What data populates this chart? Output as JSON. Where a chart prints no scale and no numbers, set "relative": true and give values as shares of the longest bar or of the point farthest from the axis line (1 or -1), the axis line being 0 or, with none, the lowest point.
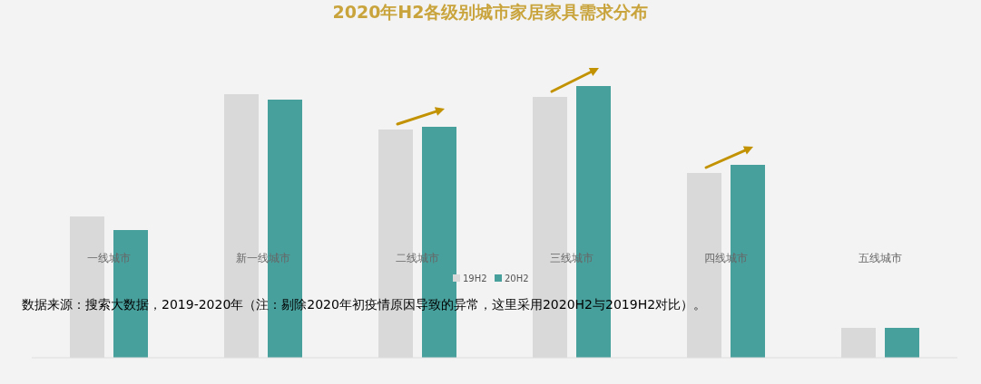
{
  "chart_data": {
    "type": "bar",
    "title": "2020年H2各级别城市家居家具需求分布",
    "categories": [
      "一线城市",
      "新一线城市",
      "二线城市",
      "三线城市",
      "四线城市",
      "五线城市"
    ],
    "series": [
      {
        "name": "19H2",
        "color": "#d9d9d9",
        "values": [
          0.52,
          0.97,
          0.84,
          0.96,
          0.68,
          0.11
        ]
      },
      {
        "name": "20H2",
        "color": "#48a09d",
        "values": [
          0.47,
          0.95,
          0.85,
          1,
          0.71,
          0.11
        ]
      }
    ],
    "relative": true,
    "legend": "bottom",
    "annotations": [
      "数据来源：搜索大数据，2019-2020年（注：剔除2020年初疫情原因导致的异常，这里采用2020H2与2019H2对比）。"
    ]
  }
}
